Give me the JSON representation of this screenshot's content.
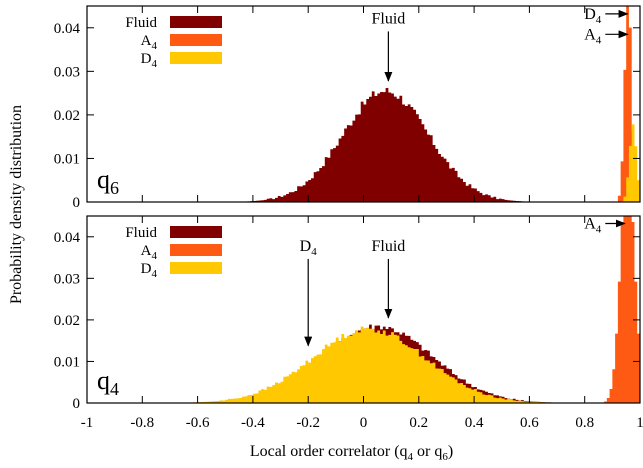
{
  "chart_data": {
    "type": "area",
    "xlabel": "Local order correlator (q",
    "xlabel_sub1": "4",
    "xlabel_mid": " or q",
    "xlabel_sub2": "6",
    "xlabel_end": ")",
    "ylabel": "Probability density distribution",
    "xlim": [
      -1,
      1
    ],
    "x_ticks": [
      "-1",
      "-0.8",
      "-0.6",
      "-0.4",
      "-0.2",
      "0",
      "0.2",
      "0.4",
      "0.6",
      "0.8",
      "1"
    ],
    "x_tick_values": [
      -1,
      -0.8,
      -0.6,
      -0.4,
      -0.2,
      0,
      0.2,
      0.4,
      0.6,
      0.8,
      1
    ],
    "colors": {
      "fluid": "#800000",
      "a4": "#ff5a14",
      "d4": "#ffc800"
    },
    "panels": [
      {
        "id": "top",
        "label": "q",
        "label_sub": "6",
        "ylim": [
          0,
          0.045
        ],
        "y_ticks": [
          "0",
          "0.01",
          "0.02",
          "0.03",
          "0.04"
        ],
        "y_tick_values": [
          0,
          0.01,
          0.02,
          0.03,
          0.04
        ],
        "legend": [
          {
            "key": "fluid",
            "name": "Fluid",
            "sub": ""
          },
          {
            "key": "a4",
            "name": "A",
            "sub": "4"
          },
          {
            "key": "d4",
            "name": "D",
            "sub": "4"
          }
        ],
        "series": [
          {
            "key": "fluid",
            "name": "Fluid",
            "shape": "gaussian",
            "mean": 0.08,
            "sd": 0.155,
            "peak": 0.0255,
            "noise": 0.0012
          },
          {
            "key": "a4",
            "name": "A4",
            "shape": "gaussian",
            "mean": 0.957,
            "sd": 0.012,
            "peak": 0.05,
            "noise": 0
          },
          {
            "key": "d4",
            "name": "D4",
            "shape": "gaussian",
            "mean": 0.975,
            "sd": 0.013,
            "peak": 0.018,
            "noise": 0.001
          }
        ],
        "annotations": [
          {
            "text": "Fluid",
            "sub": "",
            "type": "down",
            "x": 0.09,
            "y_text": 0.041,
            "y_tip": 0.0278
          },
          {
            "text": "D",
            "sub": "4",
            "type": "right",
            "x_text": 0.86,
            "y": 0.0432,
            "x_tip": 0.955
          },
          {
            "text": "A",
            "sub": "4",
            "type": "right",
            "x_text": 0.86,
            "y": 0.0385,
            "x_tip": 0.955
          }
        ]
      },
      {
        "id": "bottom",
        "label": "q",
        "label_sub": "4",
        "ylim": [
          0,
          0.045
        ],
        "y_ticks": [
          "0",
          "0.01",
          "0.02",
          "0.03",
          "0.04"
        ],
        "y_tick_values": [
          0,
          0.01,
          0.02,
          0.03,
          0.04
        ],
        "legend": [
          {
            "key": "fluid",
            "name": "Fluid",
            "sub": ""
          },
          {
            "key": "a4",
            "name": "A",
            "sub": "4"
          },
          {
            "key": "d4",
            "name": "D",
            "sub": "4"
          }
        ],
        "series": [
          {
            "key": "fluid",
            "name": "Fluid",
            "shape": "gaussian",
            "mean": 0.05,
            "sd": 0.2,
            "peak": 0.0185,
            "noise": 0.0008
          },
          {
            "key": "d4",
            "name": "D4",
            "shape": "gaussian",
            "mean": 0.02,
            "sd": 0.205,
            "peak": 0.0178,
            "noise": 0.0008
          },
          {
            "key": "a4",
            "name": "A4",
            "shape": "gaussian",
            "mean": 0.955,
            "sd": 0.025,
            "peak": 0.06,
            "noise": 0
          }
        ],
        "annotations": [
          {
            "text": "Fluid",
            "sub": "",
            "type": "down",
            "x": 0.09,
            "y_text": 0.0366,
            "y_tip": 0.0205
          },
          {
            "text": "D",
            "sub": "4",
            "type": "down",
            "x": -0.2,
            "y_text": 0.0366,
            "y_tip": 0.0138
          },
          {
            "text": "A",
            "sub": "4",
            "type": "right",
            "x_text": 0.86,
            "y": 0.0432,
            "x_tip": 0.945
          }
        ]
      }
    ]
  }
}
